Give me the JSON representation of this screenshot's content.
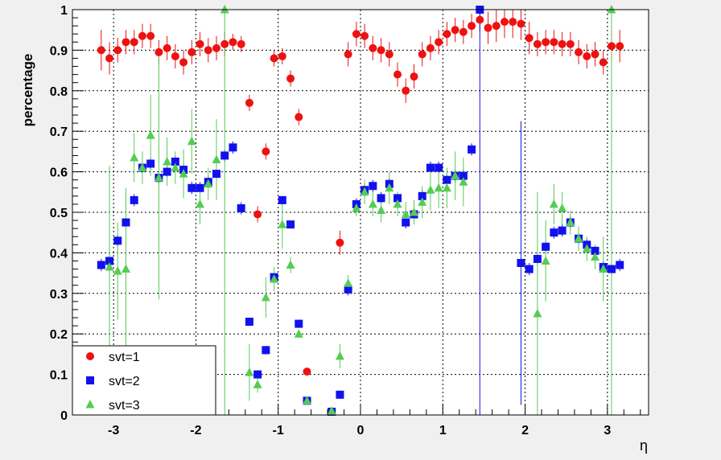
{
  "chart_data": {
    "type": "scatter",
    "title": "",
    "xlabel": "η",
    "ylabel": "percentage",
    "xlim": [
      -3.5,
      3.5
    ],
    "ylim": [
      0,
      1
    ],
    "x_ticks": [
      -3,
      -2,
      -1,
      0,
      1,
      2,
      3
    ],
    "x_tick_labels": [
      "-3",
      "-2",
      "-1",
      "0",
      "1",
      "2",
      "3"
    ],
    "y_ticks": [
      0,
      0.1,
      0.2,
      0.3,
      0.4,
      0.5,
      0.6,
      0.7,
      0.8,
      0.9,
      1
    ],
    "y_tick_labels": [
      "0",
      "0.1",
      "0.2",
      "0.3",
      "0.4",
      "0.5",
      "0.6",
      "0.7",
      "0.8",
      "0.9",
      "1"
    ],
    "grid": true,
    "legend_position": "bottom-left",
    "series": [
      {
        "name": "svt=1",
        "color": "#ee1111",
        "marker": "circle",
        "points": [
          {
            "x": -3.15,
            "y": 0.9,
            "err": 0.05
          },
          {
            "x": -3.05,
            "y": 0.88,
            "err": 0.04
          },
          {
            "x": -2.95,
            "y": 0.9,
            "err": 0.03
          },
          {
            "x": -2.85,
            "y": 0.92,
            "err": 0.03
          },
          {
            "x": -2.75,
            "y": 0.92,
            "err": 0.03
          },
          {
            "x": -2.65,
            "y": 0.935,
            "err": 0.03
          },
          {
            "x": -2.55,
            "y": 0.935,
            "err": 0.03
          },
          {
            "x": -2.45,
            "y": 0.895,
            "err": 0.03
          },
          {
            "x": -2.35,
            "y": 0.905,
            "err": 0.03
          },
          {
            "x": -2.25,
            "y": 0.885,
            "err": 0.03
          },
          {
            "x": -2.15,
            "y": 0.87,
            "err": 0.03
          },
          {
            "x": -2.05,
            "y": 0.895,
            "err": 0.03
          },
          {
            "x": -1.95,
            "y": 0.915,
            "err": 0.03
          },
          {
            "x": -1.85,
            "y": 0.9,
            "err": 0.03
          },
          {
            "x": -1.75,
            "y": 0.905,
            "err": 0.03
          },
          {
            "x": -1.65,
            "y": 0.915,
            "err": 0.03
          },
          {
            "x": -1.55,
            "y": 0.92,
            "err": 0.02
          },
          {
            "x": -1.45,
            "y": 0.915,
            "err": 0.02
          },
          {
            "x": -1.35,
            "y": 0.77,
            "err": 0.02
          },
          {
            "x": -1.25,
            "y": 0.495,
            "err": 0.02
          },
          {
            "x": -1.15,
            "y": 0.65,
            "err": 0.02
          },
          {
            "x": -1.05,
            "y": 0.88,
            "err": 0.02
          },
          {
            "x": -0.95,
            "y": 0.885,
            "err": 0.02
          },
          {
            "x": -0.85,
            "y": 0.83,
            "err": 0.02
          },
          {
            "x": -0.75,
            "y": 0.735,
            "err": 0.02
          },
          {
            "x": -0.65,
            "y": 0.107,
            "err": 0.01
          },
          {
            "x": -0.25,
            "y": 0.425,
            "err": 0.03
          },
          {
            "x": -0.15,
            "y": 0.89,
            "err": 0.03
          },
          {
            "x": -0.05,
            "y": 0.94,
            "err": 0.03
          },
          {
            "x": 0.05,
            "y": 0.935,
            "err": 0.03
          },
          {
            "x": 0.15,
            "y": 0.905,
            "err": 0.03
          },
          {
            "x": 0.25,
            "y": 0.9,
            "err": 0.03
          },
          {
            "x": 0.35,
            "y": 0.89,
            "err": 0.03
          },
          {
            "x": 0.45,
            "y": 0.84,
            "err": 0.03
          },
          {
            "x": 0.55,
            "y": 0.8,
            "err": 0.03
          },
          {
            "x": 0.65,
            "y": 0.835,
            "err": 0.03
          },
          {
            "x": 0.75,
            "y": 0.89,
            "err": 0.03
          },
          {
            "x": 0.85,
            "y": 0.905,
            "err": 0.03
          },
          {
            "x": 0.95,
            "y": 0.92,
            "err": 0.03
          },
          {
            "x": 1.05,
            "y": 0.94,
            "err": 0.03
          },
          {
            "x": 1.15,
            "y": 0.95,
            "err": 0.03
          },
          {
            "x": 1.25,
            "y": 0.945,
            "err": 0.03
          },
          {
            "x": 1.35,
            "y": 0.96,
            "err": 0.03
          },
          {
            "x": 1.45,
            "y": 0.975,
            "err": 0.03
          },
          {
            "x": 1.55,
            "y": 0.955,
            "err": 0.04
          },
          {
            "x": 1.65,
            "y": 0.96,
            "err": 0.04
          },
          {
            "x": 1.75,
            "y": 0.97,
            "err": 0.04
          },
          {
            "x": 1.85,
            "y": 0.97,
            "err": 0.04
          },
          {
            "x": 1.95,
            "y": 0.965,
            "err": 0.04
          },
          {
            "x": 2.05,
            "y": 0.93,
            "err": 0.04
          },
          {
            "x": 2.15,
            "y": 0.915,
            "err": 0.03
          },
          {
            "x": 2.25,
            "y": 0.92,
            "err": 0.03
          },
          {
            "x": 2.35,
            "y": 0.92,
            "err": 0.03
          },
          {
            "x": 2.45,
            "y": 0.915,
            "err": 0.03
          },
          {
            "x": 2.55,
            "y": 0.915,
            "err": 0.03
          },
          {
            "x": 2.65,
            "y": 0.895,
            "err": 0.03
          },
          {
            "x": 2.75,
            "y": 0.885,
            "err": 0.03
          },
          {
            "x": 2.85,
            "y": 0.89,
            "err": 0.03
          },
          {
            "x": 2.95,
            "y": 0.87,
            "err": 0.03
          },
          {
            "x": 3.05,
            "y": 0.91,
            "err": 0.04
          },
          {
            "x": 3.15,
            "y": 0.91,
            "err": 0.04
          }
        ]
      },
      {
        "name": "svt=2",
        "color": "#1111ee",
        "marker": "square",
        "points": [
          {
            "x": -3.15,
            "y": 0.37,
            "err": 0.015
          },
          {
            "x": -3.05,
            "y": 0.38,
            "err": 0.015
          },
          {
            "x": -2.95,
            "y": 0.43,
            "err": 0.015
          },
          {
            "x": -2.85,
            "y": 0.475,
            "err": 0.015
          },
          {
            "x": -2.75,
            "y": 0.53,
            "err": 0.015
          },
          {
            "x": -2.65,
            "y": 0.61,
            "err": 0.015
          },
          {
            "x": -2.55,
            "y": 0.62,
            "err": 0.015
          },
          {
            "x": -2.45,
            "y": 0.585,
            "err": 0.015
          },
          {
            "x": -2.35,
            "y": 0.6,
            "err": 0.015
          },
          {
            "x": -2.25,
            "y": 0.625,
            "err": 0.015
          },
          {
            "x": -2.15,
            "y": 0.605,
            "err": 0.015
          },
          {
            "x": -2.05,
            "y": 0.56,
            "err": 0.015
          },
          {
            "x": -1.95,
            "y": 0.56,
            "err": 0.015
          },
          {
            "x": -1.85,
            "y": 0.575,
            "err": 0.015
          },
          {
            "x": -1.75,
            "y": 0.595,
            "err": 0.015
          },
          {
            "x": -1.65,
            "y": 0.64,
            "err": 0.015
          },
          {
            "x": -1.55,
            "y": 0.66,
            "err": 0.015
          },
          {
            "x": -1.45,
            "y": 0.51,
            "err": 0.015
          },
          {
            "x": -1.35,
            "y": 0.23,
            "err": 0.01
          },
          {
            "x": -1.25,
            "y": 0.1,
            "err": 0.01
          },
          {
            "x": -1.15,
            "y": 0.16,
            "err": 0.01
          },
          {
            "x": -1.05,
            "y": 0.34,
            "err": 0.01
          },
          {
            "x": -0.95,
            "y": 0.53,
            "err": 0.01
          },
          {
            "x": -0.85,
            "y": 0.47,
            "err": 0.01
          },
          {
            "x": -0.75,
            "y": 0.225,
            "err": 0.01
          },
          {
            "x": -0.65,
            "y": 0.035,
            "err": 0.005
          },
          {
            "x": -0.35,
            "y": 0.008,
            "err": 0.005
          },
          {
            "x": -0.25,
            "y": 0.05,
            "err": 0.01
          },
          {
            "x": -0.15,
            "y": 0.31,
            "err": 0.015
          },
          {
            "x": -0.05,
            "y": 0.52,
            "err": 0.015
          },
          {
            "x": 0.05,
            "y": 0.555,
            "err": 0.015
          },
          {
            "x": 0.15,
            "y": 0.565,
            "err": 0.015
          },
          {
            "x": 0.25,
            "y": 0.535,
            "err": 0.015
          },
          {
            "x": 0.35,
            "y": 0.57,
            "err": 0.015
          },
          {
            "x": 0.45,
            "y": 0.535,
            "err": 0.015
          },
          {
            "x": 0.55,
            "y": 0.475,
            "err": 0.015
          },
          {
            "x": 0.65,
            "y": 0.495,
            "err": 0.015
          },
          {
            "x": 0.75,
            "y": 0.54,
            "err": 0.015
          },
          {
            "x": 0.85,
            "y": 0.61,
            "err": 0.015
          },
          {
            "x": 0.95,
            "y": 0.61,
            "err": 0.015
          },
          {
            "x": 1.05,
            "y": 0.58,
            "err": 0.015
          },
          {
            "x": 1.15,
            "y": 0.59,
            "err": 0.015
          },
          {
            "x": 1.25,
            "y": 0.59,
            "err": 0.015
          },
          {
            "x": 1.35,
            "y": 0.655,
            "err": 0.015
          },
          {
            "x": 1.45,
            "y": 1.0,
            "err": 1.0
          },
          {
            "x": 1.95,
            "y": 0.375,
            "err": 0.35
          },
          {
            "x": 2.05,
            "y": 0.36,
            "err": 0.015
          },
          {
            "x": 2.15,
            "y": 0.385,
            "err": 0.015
          },
          {
            "x": 2.25,
            "y": 0.415,
            "err": 0.015
          },
          {
            "x": 2.35,
            "y": 0.45,
            "err": 0.015
          },
          {
            "x": 2.45,
            "y": 0.455,
            "err": 0.015
          },
          {
            "x": 2.55,
            "y": 0.475,
            "err": 0.015
          },
          {
            "x": 2.65,
            "y": 0.435,
            "err": 0.015
          },
          {
            "x": 2.75,
            "y": 0.42,
            "err": 0.015
          },
          {
            "x": 2.85,
            "y": 0.405,
            "err": 0.015
          },
          {
            "x": 2.95,
            "y": 0.365,
            "err": 0.015
          },
          {
            "x": 3.05,
            "y": 0.36,
            "err": 0.015
          },
          {
            "x": 3.15,
            "y": 0.37,
            "err": 0.015
          }
        ]
      },
      {
        "name": "svt=3",
        "color": "#55cc55",
        "marker": "triangle",
        "points": [
          {
            "x": -3.05,
            "y": 0.365,
            "err": 0.25
          },
          {
            "x": -2.95,
            "y": 0.355,
            "err": 0.12
          },
          {
            "x": -2.85,
            "y": 0.36,
            "err": 0.2
          },
          {
            "x": -2.75,
            "y": 0.635,
            "err": 0.06
          },
          {
            "x": -2.65,
            "y": 0.61,
            "err": 0.04
          },
          {
            "x": -2.55,
            "y": 0.69,
            "err": 0.1
          },
          {
            "x": -2.45,
            "y": 0.585,
            "err": 0.3
          },
          {
            "x": -2.35,
            "y": 0.625,
            "err": 0.06
          },
          {
            "x": -2.25,
            "y": 0.61,
            "err": 0.04
          },
          {
            "x": -2.15,
            "y": 0.595,
            "err": 0.06
          },
          {
            "x": -2.05,
            "y": 0.675,
            "err": 0.08
          },
          {
            "x": -1.95,
            "y": 0.52,
            "err": 0.05
          },
          {
            "x": -1.85,
            "y": 0.57,
            "err": 0.04
          },
          {
            "x": -1.75,
            "y": 0.63,
            "err": 0.1
          },
          {
            "x": -1.65,
            "y": 1.0,
            "err": 1.0
          },
          {
            "x": -1.35,
            "y": 0.105,
            "err": 0.07
          },
          {
            "x": -1.25,
            "y": 0.075,
            "err": 0.02
          },
          {
            "x": -1.15,
            "y": 0.29,
            "err": 0.05
          },
          {
            "x": -1.05,
            "y": 0.335,
            "err": 0.03
          },
          {
            "x": -0.95,
            "y": 0.47,
            "err": 0.06
          },
          {
            "x": -0.85,
            "y": 0.37,
            "err": 0.02
          },
          {
            "x": -0.75,
            "y": 0.2,
            "err": 0.01
          },
          {
            "x": -0.65,
            "y": 0.035,
            "err": 0.005
          },
          {
            "x": -0.35,
            "y": 0.01,
            "err": 0.005
          },
          {
            "x": -0.25,
            "y": 0.145,
            "err": 0.03
          },
          {
            "x": -0.15,
            "y": 0.325,
            "err": 0.02
          },
          {
            "x": -0.05,
            "y": 0.51,
            "err": 0.02
          },
          {
            "x": 0.05,
            "y": 0.55,
            "err": 0.03
          },
          {
            "x": 0.15,
            "y": 0.52,
            "err": 0.03
          },
          {
            "x": 0.25,
            "y": 0.505,
            "err": 0.03
          },
          {
            "x": 0.35,
            "y": 0.56,
            "err": 0.04
          },
          {
            "x": 0.45,
            "y": 0.52,
            "err": 0.03
          },
          {
            "x": 0.55,
            "y": 0.495,
            "err": 0.03
          },
          {
            "x": 0.65,
            "y": 0.5,
            "err": 0.03
          },
          {
            "x": 0.75,
            "y": 0.525,
            "err": 0.04
          },
          {
            "x": 0.85,
            "y": 0.555,
            "err": 0.05
          },
          {
            "x": 0.95,
            "y": 0.56,
            "err": 0.05
          },
          {
            "x": 1.05,
            "y": 0.56,
            "err": 0.05
          },
          {
            "x": 1.15,
            "y": 0.59,
            "err": 0.06
          },
          {
            "x": 1.25,
            "y": 0.575,
            "err": 0.06
          },
          {
            "x": 2.15,
            "y": 0.25,
            "err": 0.3
          },
          {
            "x": 2.25,
            "y": 0.38,
            "err": 0.1
          },
          {
            "x": 2.35,
            "y": 0.52,
            "err": 0.05
          },
          {
            "x": 2.45,
            "y": 0.51,
            "err": 0.04
          },
          {
            "x": 2.55,
            "y": 0.475,
            "err": 0.03
          },
          {
            "x": 2.65,
            "y": 0.435,
            "err": 0.03
          },
          {
            "x": 2.75,
            "y": 0.41,
            "err": 0.03
          },
          {
            "x": 2.85,
            "y": 0.39,
            "err": 0.03
          },
          {
            "x": 2.95,
            "y": 0.36,
            "err": 0.08
          },
          {
            "x": 3.05,
            "y": 1.0,
            "err": 1.0
          }
        ]
      }
    ]
  }
}
